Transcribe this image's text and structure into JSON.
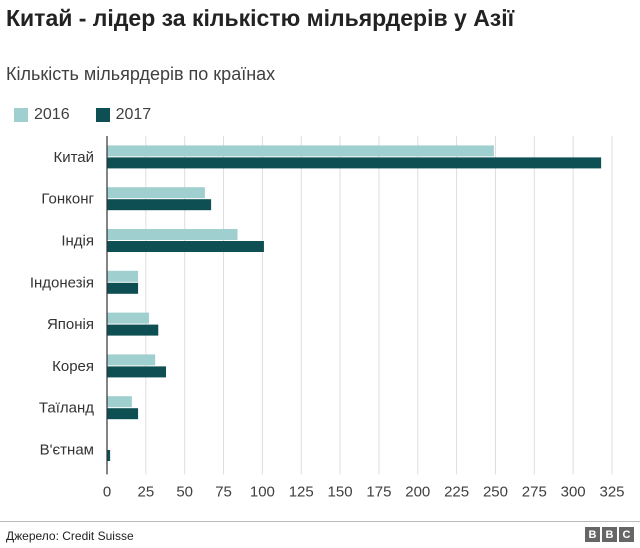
{
  "header": {
    "title": "Китай - лідер за кількістю мільярдерів у Азії",
    "subtitle": "Кількість мільярдерів по країнах"
  },
  "footer": {
    "source": "Джерело: Credit Suisse",
    "logo_letters": [
      "B",
      "B",
      "C"
    ]
  },
  "chart_data": {
    "type": "bar",
    "orientation": "horizontal",
    "categories": [
      "Китай",
      "Гонконг",
      "Індія",
      "Індонезія",
      "Японія",
      "Корея",
      "Таїланд",
      "В'єтнам"
    ],
    "series": [
      {
        "name": "2016",
        "color": "#9fcfcf",
        "values": [
          249,
          63,
          84,
          20,
          27,
          31,
          16,
          0
        ]
      },
      {
        "name": "2017",
        "color": "#0d4f52",
        "values": [
          318,
          67,
          101,
          20,
          33,
          38,
          20,
          2
        ]
      }
    ],
    "xlim": [
      0,
      325
    ],
    "xticks": [
      0,
      25,
      50,
      75,
      100,
      125,
      150,
      175,
      200,
      225,
      250,
      275,
      300,
      325
    ],
    "grid": true,
    "legend_position": "top-left"
  }
}
